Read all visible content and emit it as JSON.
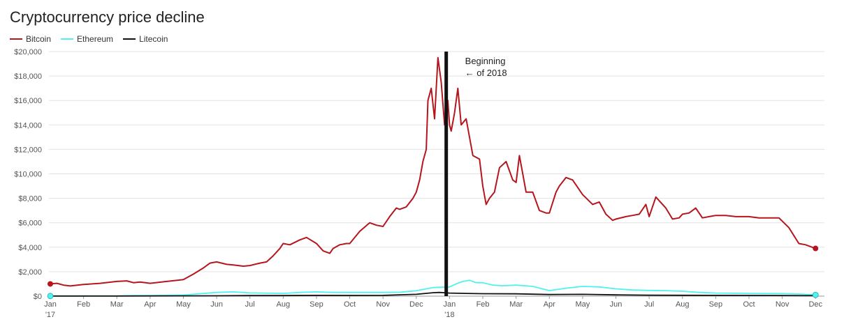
{
  "chart_data": {
    "type": "line",
    "title": "Cryptocurrency price decline",
    "xlabel": "",
    "ylabel": "",
    "ylim": [
      0,
      20000
    ],
    "yticks": [
      "$0",
      "$2,000",
      "$4,000",
      "$6,000",
      "$8,000",
      "$10,000",
      "$12,000",
      "$14,000",
      "$16,000",
      "$18,000",
      "$20,000"
    ],
    "xticks": [
      {
        "label": "Jan",
        "sub": "'17",
        "month": 0
      },
      {
        "label": "Feb",
        "month": 1
      },
      {
        "label": "Mar",
        "month": 2
      },
      {
        "label": "Apr",
        "month": 3
      },
      {
        "label": "May",
        "month": 4
      },
      {
        "label": "Jun",
        "month": 5
      },
      {
        "label": "Jul",
        "month": 6
      },
      {
        "label": "Aug",
        "month": 7
      },
      {
        "label": "Sep",
        "month": 8
      },
      {
        "label": "Oct",
        "month": 9
      },
      {
        "label": "Nov",
        "month": 10
      },
      {
        "label": "Dec",
        "month": 11
      },
      {
        "label": "Jan",
        "sub": "'18",
        "month": 12
      },
      {
        "label": "Feb",
        "month": 13
      },
      {
        "label": "Mar",
        "month": 14
      },
      {
        "label": "Apr",
        "month": 15
      },
      {
        "label": "May",
        "month": 16
      },
      {
        "label": "Jun",
        "month": 17
      },
      {
        "label": "Jul",
        "month": 18
      },
      {
        "label": "Aug",
        "month": 19
      },
      {
        "label": "Sep",
        "month": 20
      },
      {
        "label": "Oct",
        "month": 21
      },
      {
        "label": "Nov",
        "month": 22
      },
      {
        "label": "Dec",
        "month": 23
      }
    ],
    "xlim_months": [
      0,
      23.1
    ],
    "grid": true,
    "legend_position": "top-left",
    "annotation": {
      "line1": "Beginning",
      "line2": "← of 2018",
      "x_month": 11.9
    },
    "series": [
      {
        "name": "Bitcoin",
        "color": "#b5161e",
        "x": [
          0,
          0.2,
          0.4,
          0.6,
          1.0,
          1.5,
          2.0,
          2.3,
          2.5,
          2.7,
          3.0,
          3.5,
          4.0,
          4.3,
          4.6,
          4.8,
          5.0,
          5.3,
          5.5,
          5.8,
          6.0,
          6.3,
          6.5,
          6.7,
          6.9,
          7.0,
          7.2,
          7.5,
          7.7,
          8.0,
          8.2,
          8.4,
          8.5,
          8.7,
          8.9,
          9.0,
          9.3,
          9.6,
          9.8,
          10.0,
          10.2,
          10.4,
          10.5,
          10.7,
          10.9,
          11.0,
          11.1,
          11.2,
          11.3,
          11.35,
          11.45,
          11.55,
          11.65,
          11.75,
          11.85,
          11.95,
          12.0,
          12.05,
          12.15,
          12.25,
          12.35,
          12.5,
          12.7,
          12.9,
          13.0,
          13.1,
          13.2,
          13.35,
          13.5,
          13.7,
          13.9,
          14.0,
          14.1,
          14.3,
          14.5,
          14.7,
          14.9,
          15.0,
          15.2,
          15.3,
          15.5,
          15.7,
          15.9,
          16.0,
          16.3,
          16.5,
          16.7,
          16.9,
          17.0,
          17.3,
          17.5,
          17.7,
          17.9,
          18.0,
          18.2,
          18.5,
          18.7,
          18.9,
          19.0,
          19.2,
          19.4,
          19.6,
          19.8,
          20.0,
          20.3,
          20.6,
          20.8,
          21.0,
          21.3,
          21.6,
          21.9,
          22.2,
          22.5,
          22.7,
          22.9,
          23.0
        ],
        "values": [
          1000,
          1050,
          900,
          830,
          950,
          1050,
          1200,
          1250,
          1100,
          1150,
          1050,
          1200,
          1350,
          1800,
          2300,
          2700,
          2800,
          2600,
          2550,
          2450,
          2500,
          2700,
          2800,
          3300,
          3900,
          4300,
          4200,
          4600,
          4800,
          4300,
          3700,
          3500,
          3900,
          4200,
          4300,
          4300,
          5300,
          6000,
          5800,
          5700,
          6500,
          7200,
          7100,
          7300,
          8000,
          8500,
          9500,
          11000,
          12000,
          16000,
          17000,
          14500,
          19500,
          17500,
          14000,
          16000,
          14000,
          13500,
          15000,
          17000,
          14000,
          14500,
          11500,
          11200,
          9000,
          7500,
          8000,
          8500,
          10500,
          11000,
          9500,
          9300,
          11500,
          8500,
          8500,
          7000,
          6800,
          6800,
          8500,
          9000,
          9700,
          9500,
          8700,
          8300,
          7500,
          7700,
          6700,
          6200,
          6300,
          6500,
          6600,
          6700,
          7500,
          6500,
          8100,
          7200,
          6300,
          6400,
          6700,
          6800,
          7200,
          6400,
          6500,
          6600,
          6600,
          6500,
          6500,
          6500,
          6400,
          6400,
          6400,
          5600,
          4300,
          4200,
          4000,
          3900
        ]
      },
      {
        "name": "Ethereum",
        "color": "#4ff2ee",
        "x": [
          0,
          1,
          2,
          2.5,
          3,
          4,
          5,
          5.5,
          6,
          7,
          7.5,
          8,
          8.5,
          9,
          10,
          10.5,
          11,
          11.5,
          12,
          12.2,
          12.4,
          12.6,
          12.8,
          13.0,
          13.3,
          13.6,
          14.0,
          14.5,
          15.0,
          15.5,
          16.0,
          16.5,
          17.0,
          17.5,
          18.0,
          18.5,
          19.0,
          19.5,
          20.0,
          21.0,
          22.0,
          22.5,
          23.0
        ],
        "values": [
          10,
          11,
          15,
          50,
          50,
          90,
          300,
          350,
          260,
          220,
          300,
          350,
          300,
          300,
          300,
          320,
          440,
          700,
          750,
          1000,
          1200,
          1300,
          1100,
          1100,
          900,
          850,
          900,
          800,
          450,
          650,
          800,
          750,
          600,
          500,
          470,
          450,
          400,
          300,
          250,
          220,
          210,
          170,
          100
        ]
      },
      {
        "name": "Litecoin",
        "color": "#111111",
        "x": [
          0,
          2,
          4,
          5,
          6,
          7,
          8,
          9,
          10,
          11,
          11.5,
          11.7,
          12,
          12.5,
          13,
          14,
          15,
          16,
          17,
          18,
          19,
          20,
          21,
          22,
          23
        ],
        "values": [
          5,
          4,
          20,
          30,
          45,
          45,
          60,
          55,
          60,
          150,
          280,
          300,
          250,
          220,
          200,
          190,
          130,
          150,
          100,
          80,
          70,
          60,
          55,
          50,
          35
        ]
      }
    ]
  }
}
